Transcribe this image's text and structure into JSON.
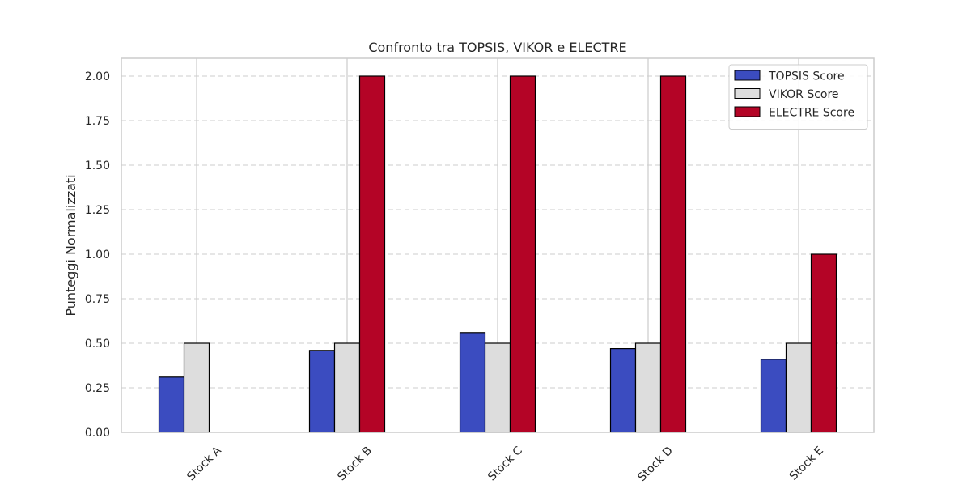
{
  "chart_data": {
    "type": "bar",
    "title": "Confronto tra TOPSIS, VIKOR e ELECTRE",
    "xlabel": "",
    "ylabel": "Punteggi Normalizzati",
    "categories": [
      "Stock A",
      "Stock B",
      "Stock C",
      "Stock D",
      "Stock E"
    ],
    "series": [
      {
        "name": "TOPSIS Score",
        "color": "#3b4cc0",
        "values": [
          0.31,
          0.46,
          0.56,
          0.47,
          0.41
        ]
      },
      {
        "name": "VIKOR Score",
        "color": "#dddddd",
        "values": [
          0.5,
          0.5,
          0.5,
          0.5,
          0.5
        ]
      },
      {
        "name": "ELECTRE Score",
        "color": "#b40426",
        "values": [
          0.0,
          2.0,
          2.0,
          2.0,
          1.0
        ]
      }
    ],
    "ylim": [
      0,
      2.1
    ],
    "yticks": [
      "0.00",
      "0.25",
      "0.50",
      "0.75",
      "1.00",
      "1.25",
      "1.50",
      "1.75",
      "2.00"
    ],
    "grid": true,
    "legend_position": "top-right"
  }
}
